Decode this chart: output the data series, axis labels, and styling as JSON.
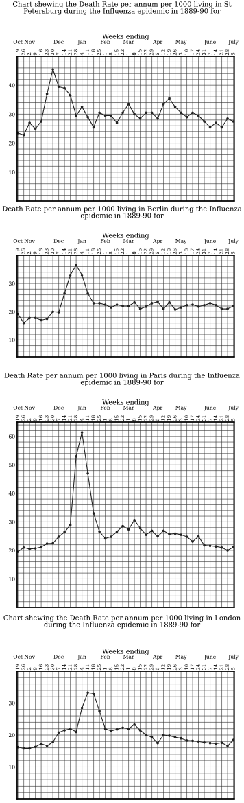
{
  "chart_data": [
    {
      "type": "line",
      "title": "Chart shewing the Death Rate per annum per 1000 living in St Petersburg during the Influenza epidemic in 1889-90 for",
      "x2label": "Weeks ending",
      "marker": "circle",
      "line_style": "solid",
      "grid": true,
      "x": [
        "1889-10-19",
        "1889-10-26",
        "1889-11-02",
        "1889-11-09",
        "1889-11-16",
        "1889-11-23",
        "1889-11-30",
        "1889-12-07",
        "1889-12-14",
        "1889-12-21",
        "1889-12-28",
        "1890-01-04",
        "1890-01-11",
        "1890-01-18",
        "1890-01-25",
        "1890-02-01",
        "1890-02-08",
        "1890-02-15",
        "1890-02-22",
        "1890-03-01",
        "1890-03-08",
        "1890-03-15",
        "1890-03-22",
        "1890-03-29",
        "1890-04-05",
        "1890-04-12",
        "1890-04-19",
        "1890-04-26",
        "1890-05-03",
        "1890-05-10",
        "1890-05-17",
        "1890-05-24",
        "1890-05-31",
        "1890-06-07",
        "1890-06-14",
        "1890-06-21",
        "1890-06-28",
        "1890-07-05"
      ],
      "series": [
        {
          "color": "#222222",
          "values": [
            23.5,
            22.8,
            27,
            25,
            27.5,
            37,
            45.5,
            39.5,
            39,
            36.5,
            29.5,
            32.5,
            29,
            25.5,
            30.5,
            29.5,
            29.5,
            27,
            30.5,
            33.5,
            30,
            28.5,
            30.5,
            30.5,
            28.5,
            33.5,
            35.5,
            32.5,
            30.5,
            29,
            30.5,
            29.5,
            27.5,
            25.5,
            27,
            25.5,
            28.5,
            27.5
          ]
        }
      ],
      "xlim": [
        "1889-10-18",
        "1890-07-06"
      ],
      "xticks": [
        {
          "value": "1889-10-19",
          "label": "19"
        },
        {
          "value": "1889-10-26",
          "label": "26"
        },
        {
          "value": "1889-11-02",
          "label": "2"
        },
        {
          "value": "1889-11-09",
          "label": "9"
        },
        {
          "value": "1889-11-16",
          "label": "16"
        },
        {
          "value": "1889-11-23",
          "label": "23"
        },
        {
          "value": "1889-11-30",
          "label": "30"
        },
        {
          "value": "1889-12-07",
          "label": "7"
        },
        {
          "value": "1889-12-14",
          "label": "14"
        },
        {
          "value": "1889-12-21",
          "label": "21"
        },
        {
          "value": "1889-12-28",
          "label": "28"
        },
        {
          "value": "1890-01-04",
          "label": "4"
        },
        {
          "value": "1890-01-11",
          "label": "11"
        },
        {
          "value": "1890-01-18",
          "label": "18"
        },
        {
          "value": "1890-01-25",
          "label": "25"
        },
        {
          "value": "1890-02-01",
          "label": "1"
        },
        {
          "value": "1890-02-08",
          "label": "8"
        },
        {
          "value": "1890-02-15",
          "label": "15"
        },
        {
          "value": "1890-02-22",
          "label": "22"
        },
        {
          "value": "1890-03-01",
          "label": "1"
        },
        {
          "value": "1890-03-08",
          "label": "8"
        },
        {
          "value": "1890-03-15",
          "label": "15"
        },
        {
          "value": "1890-03-22",
          "label": "22"
        },
        {
          "value": "1890-03-29",
          "label": "29"
        },
        {
          "value": "1890-04-05",
          "label": "5"
        },
        {
          "value": "1890-04-12",
          "label": "12"
        },
        {
          "value": "1890-04-19",
          "label": "19"
        },
        {
          "value": "1890-04-26",
          "label": "26"
        },
        {
          "value": "1890-05-03",
          "label": "3"
        },
        {
          "value": "1890-05-10",
          "label": "10"
        },
        {
          "value": "1890-05-17",
          "label": "17"
        },
        {
          "value": "1890-05-24",
          "label": "24"
        },
        {
          "value": "1890-05-31",
          "label": "31"
        },
        {
          "value": "1890-06-07",
          "label": "7"
        },
        {
          "value": "1890-06-14",
          "label": "14"
        },
        {
          "value": "1890-06-21",
          "label": "21"
        },
        {
          "value": "1890-06-28",
          "label": "28"
        },
        {
          "value": "1890-07-05",
          "label": "5"
        }
      ],
      "x2lim": [
        "1889-10-18",
        "1890-07-06"
      ],
      "x2ticks": [
        {
          "value": "1889-10-19",
          "label": "Oct"
        },
        {
          "value": "1889-11-02",
          "label": "Nov"
        },
        {
          "value": "1889-12-07",
          "label": "Dec"
        },
        {
          "value": "1890-01-04",
          "label": "Jan"
        },
        {
          "value": "1890-02-01",
          "label": "Feb"
        },
        {
          "value": "1890-03-01",
          "label": "Mar"
        },
        {
          "value": "1890-04-05",
          "label": "Apr"
        },
        {
          "value": "1890-05-03",
          "label": "May"
        },
        {
          "value": "1890-06-07",
          "label": "June"
        },
        {
          "value": "1890-07-05",
          "label": "July"
        }
      ],
      "ylim": [
        0,
        50
      ],
      "yticks": [
        {
          "value": 2,
          "label": null
        },
        {
          "value": 4,
          "label": null
        },
        {
          "value": 6,
          "label": null
        },
        {
          "value": 8,
          "label": null
        },
        10,
        {
          "value": 12,
          "label": null
        },
        {
          "value": 14,
          "label": null
        },
        {
          "value": 16,
          "label": null
        },
        {
          "value": 18,
          "label": null
        },
        20,
        {
          "value": 22,
          "label": null
        },
        {
          "value": 24,
          "label": null
        },
        {
          "value": 26,
          "label": null
        },
        {
          "value": 28,
          "label": null
        },
        30,
        {
          "value": 32,
          "label": null
        },
        {
          "value": 34,
          "label": null
        },
        {
          "value": 36,
          "label": null
        },
        {
          "value": 38,
          "label": null
        },
        40,
        {
          "value": 42,
          "label": null
        },
        {
          "value": 44,
          "label": null
        },
        {
          "value": 46,
          "label": null
        },
        {
          "value": 48,
          "label": null
        }
      ]
    },
    {
      "type": "line",
      "title": "Death Rate per annum per 1000 living in Berlin during the Influenza epidemic in 1889-90 for",
      "x2label": "Weeks ending",
      "marker": "circle",
      "line_style": "solid",
      "grid": true,
      "x": [
        "1889-10-19",
        "1889-10-26",
        "1889-11-02",
        "1889-11-09",
        "1889-11-16",
        "1889-11-23",
        "1889-11-30",
        "1889-12-07",
        "1889-12-14",
        "1889-12-21",
        "1889-12-28",
        "1890-01-04",
        "1890-01-11",
        "1890-01-18",
        "1890-01-25",
        "1890-02-01",
        "1890-02-08",
        "1890-02-15",
        "1890-02-22",
        "1890-03-01",
        "1890-03-08",
        "1890-03-15",
        "1890-03-22",
        "1890-03-29",
        "1890-04-05",
        "1890-04-12",
        "1890-04-19",
        "1890-04-26",
        "1890-05-03",
        "1890-05-10",
        "1890-05-17",
        "1890-05-24",
        "1890-05-31",
        "1890-06-07",
        "1890-06-14",
        "1890-06-21",
        "1890-06-28",
        "1890-07-05"
      ],
      "series": [
        {
          "color": "#222222",
          "values": [
            19.2,
            16,
            17.8,
            17.8,
            17,
            17.5,
            20,
            19.8,
            26.5,
            33,
            36.5,
            33,
            26.5,
            23,
            23,
            22.5,
            21.5,
            22.5,
            22,
            22,
            23.3,
            21,
            21.8,
            23,
            23.5,
            21,
            23.3,
            20.8,
            21.5,
            22.3,
            22.5,
            21.8,
            22.3,
            23,
            22.3,
            21,
            21,
            22
          ]
        }
      ],
      "xlim": [
        "1889-10-18",
        "1890-07-06"
      ],
      "xticks": [
        {
          "value": "1889-10-19",
          "label": "19"
        },
        {
          "value": "1889-10-26",
          "label": "26"
        },
        {
          "value": "1889-11-02",
          "label": "2"
        },
        {
          "value": "1889-11-09",
          "label": "9"
        },
        {
          "value": "1889-11-16",
          "label": "16"
        },
        {
          "value": "1889-11-23",
          "label": "23"
        },
        {
          "value": "1889-11-30",
          "label": "30"
        },
        {
          "value": "1889-12-07",
          "label": "7"
        },
        {
          "value": "1889-12-14",
          "label": "14"
        },
        {
          "value": "1889-12-21",
          "label": "21"
        },
        {
          "value": "1889-12-28",
          "label": "28"
        },
        {
          "value": "1890-01-04",
          "label": "4"
        },
        {
          "value": "1890-01-11",
          "label": "11"
        },
        {
          "value": "1890-01-18",
          "label": "18"
        },
        {
          "value": "1890-01-25",
          "label": "25"
        },
        {
          "value": "1890-02-01",
          "label": "1"
        },
        {
          "value": "1890-02-08",
          "label": "8"
        },
        {
          "value": "1890-02-15",
          "label": "15"
        },
        {
          "value": "1890-02-22",
          "label": "22"
        },
        {
          "value": "1890-03-01",
          "label": "1"
        },
        {
          "value": "1890-03-08",
          "label": "8"
        },
        {
          "value": "1890-03-15",
          "label": "15"
        },
        {
          "value": "1890-03-22",
          "label": "22"
        },
        {
          "value": "1890-03-29",
          "label": "29"
        },
        {
          "value": "1890-04-05",
          "label": "5"
        },
        {
          "value": "1890-04-12",
          "label": "12"
        },
        {
          "value": "1890-04-19",
          "label": "19"
        },
        {
          "value": "1890-04-26",
          "label": "26"
        },
        {
          "value": "1890-05-03",
          "label": "3"
        },
        {
          "value": "1890-05-10",
          "label": "10"
        },
        {
          "value": "1890-05-17",
          "label": "17"
        },
        {
          "value": "1890-05-24",
          "label": "24"
        },
        {
          "value": "1890-05-31",
          "label": "31"
        },
        {
          "value": "1890-06-07",
          "label": "7"
        },
        {
          "value": "1890-06-14",
          "label": "14"
        },
        {
          "value": "1890-06-21",
          "label": "21"
        },
        {
          "value": "1890-06-28",
          "label": "28"
        },
        {
          "value": "1890-07-05",
          "label": "5"
        }
      ],
      "x2lim": [
        "1889-10-18",
        "1890-07-06"
      ],
      "x2ticks": [
        {
          "value": "1889-10-19",
          "label": "Oct"
        },
        {
          "value": "1889-11-02",
          "label": "Nov"
        },
        {
          "value": "1889-12-07",
          "label": "Dec"
        },
        {
          "value": "1890-01-04",
          "label": "Jan"
        },
        {
          "value": "1890-02-01",
          "label": "Feb"
        },
        {
          "value": "1890-03-01",
          "label": "Mar"
        },
        {
          "value": "1890-04-05",
          "label": "Apr"
        },
        {
          "value": "1890-05-03",
          "label": "May"
        },
        {
          "value": "1890-06-07",
          "label": "June"
        },
        {
          "value": "1890-07-05",
          "label": "July"
        }
      ],
      "ylim": [
        4,
        40
      ],
      "yticks": [
        {
          "value": 6,
          "label": null
        },
        {
          "value": 8,
          "label": null
        },
        10,
        {
          "value": 12,
          "label": null
        },
        {
          "value": 14,
          "label": null
        },
        {
          "value": 16,
          "label": null
        },
        {
          "value": 18,
          "label": null
        },
        20,
        {
          "value": 22,
          "label": null
        },
        {
          "value": 24,
          "label": null
        },
        {
          "value": 26,
          "label": null
        },
        {
          "value": 28,
          "label": null
        },
        30,
        {
          "value": 32,
          "label": null
        },
        {
          "value": 34,
          "label": null
        },
        {
          "value": 36,
          "label": null
        },
        {
          "value": 38,
          "label": null
        }
      ]
    },
    {
      "type": "line",
      "title": "Death Rate per annum per 1000 living in Paris during the Influenza epidemic in 1889-90 for",
      "x2label": "Weeks ending",
      "marker": "circle",
      "line_style": "solid",
      "grid": true,
      "x": [
        "1889-10-19",
        "1889-10-26",
        "1889-11-02",
        "1889-11-09",
        "1889-11-16",
        "1889-11-23",
        "1889-11-30",
        "1889-12-07",
        "1889-12-14",
        "1889-12-21",
        "1889-12-28",
        "1890-01-04",
        "1890-01-11",
        "1890-01-18",
        "1890-01-25",
        "1890-02-01",
        "1890-02-08",
        "1890-02-15",
        "1890-02-22",
        "1890-03-01",
        "1890-03-08",
        "1890-03-15",
        "1890-03-22",
        "1890-03-29",
        "1890-04-05",
        "1890-04-12",
        "1890-04-19",
        "1890-04-26",
        "1890-05-03",
        "1890-05-10",
        "1890-05-17",
        "1890-05-24",
        "1890-05-31",
        "1890-06-07",
        "1890-06-14",
        "1890-06-21",
        "1890-06-28",
        "1890-07-05"
      ],
      "series": [
        {
          "color": "#222222",
          "values": [
            19.5,
            21,
            20.5,
            20.7,
            21.2,
            22.4,
            22.5,
            24.8,
            26.4,
            28.9,
            53,
            61.4,
            47,
            33,
            26.6,
            24.2,
            24.8,
            26.6,
            28.5,
            27.4,
            30.6,
            27.8,
            25.5,
            26.9,
            24.9,
            26.9,
            25.7,
            25.9,
            25.5,
            24.8,
            23.1,
            24.9,
            21.8,
            21.6,
            21.4,
            21,
            20,
            21.2
          ]
        }
      ],
      "xlim": [
        "1889-10-18",
        "1890-07-06"
      ],
      "xticks": [
        {
          "value": "1889-10-19",
          "label": "19"
        },
        {
          "value": "1889-10-26",
          "label": "26"
        },
        {
          "value": "1889-11-02",
          "label": "2"
        },
        {
          "value": "1889-11-09",
          "label": "9"
        },
        {
          "value": "1889-11-16",
          "label": "16"
        },
        {
          "value": "1889-11-23",
          "label": "23"
        },
        {
          "value": "1889-11-30",
          "label": "30"
        },
        {
          "value": "1889-12-07",
          "label": "7"
        },
        {
          "value": "1889-12-14",
          "label": "14"
        },
        {
          "value": "1889-12-21",
          "label": "21"
        },
        {
          "value": "1889-12-28",
          "label": "28"
        },
        {
          "value": "1890-01-04",
          "label": "4"
        },
        {
          "value": "1890-01-11",
          "label": "11"
        },
        {
          "value": "1890-01-18",
          "label": "18"
        },
        {
          "value": "1890-01-25",
          "label": "25"
        },
        {
          "value": "1890-02-01",
          "label": "1"
        },
        {
          "value": "1890-02-08",
          "label": "8"
        },
        {
          "value": "1890-02-15",
          "label": "15"
        },
        {
          "value": "1890-02-22",
          "label": "22"
        },
        {
          "value": "1890-03-01",
          "label": "1"
        },
        {
          "value": "1890-03-08",
          "label": "8"
        },
        {
          "value": "1890-03-15",
          "label": "15"
        },
        {
          "value": "1890-03-22",
          "label": "22"
        },
        {
          "value": "1890-03-29",
          "label": "29"
        },
        {
          "value": "1890-04-05",
          "label": "5"
        },
        {
          "value": "1890-04-12",
          "label": "12"
        },
        {
          "value": "1890-04-19",
          "label": "19"
        },
        {
          "value": "1890-04-26",
          "label": "26"
        },
        {
          "value": "1890-05-03",
          "label": "3"
        },
        {
          "value": "1890-05-10",
          "label": "10"
        },
        {
          "value": "1890-05-17",
          "label": "17"
        },
        {
          "value": "1890-05-24",
          "label": "24"
        },
        {
          "value": "1890-05-31",
          "label": "31"
        },
        {
          "value": "1890-06-07",
          "label": "7"
        },
        {
          "value": "1890-06-14",
          "label": "14"
        },
        {
          "value": "1890-06-21",
          "label": "21"
        },
        {
          "value": "1890-06-28",
          "label": "28"
        },
        {
          "value": "1890-07-05",
          "label": "5"
        }
      ],
      "x2lim": [
        "1889-10-18",
        "1890-07-06"
      ],
      "x2ticks": [
        {
          "value": "1889-10-19",
          "label": "Oct"
        },
        {
          "value": "1889-11-02",
          "label": "Nov"
        },
        {
          "value": "1889-12-07",
          "label": "Dec"
        },
        {
          "value": "1890-01-04",
          "label": "Jan"
        },
        {
          "value": "1890-02-01",
          "label": "Feb"
        },
        {
          "value": "1890-03-01",
          "label": "Mar"
        },
        {
          "value": "1890-04-05",
          "label": "Apr"
        },
        {
          "value": "1890-05-03",
          "label": "May"
        },
        {
          "value": "1890-06-07",
          "label": "June"
        },
        {
          "value": "1890-07-05",
          "label": "July"
        }
      ],
      "ylim": [
        0,
        65
      ],
      "yticks": [
        {
          "value": 2,
          "label": null
        },
        {
          "value": 4,
          "label": null
        },
        {
          "value": 6,
          "label": null
        },
        {
          "value": 8,
          "label": null
        },
        10,
        {
          "value": 12,
          "label": null
        },
        {
          "value": 14,
          "label": null
        },
        {
          "value": 16,
          "label": null
        },
        {
          "value": 18,
          "label": null
        },
        20,
        {
          "value": 22,
          "label": null
        },
        {
          "value": 24,
          "label": null
        },
        {
          "value": 26,
          "label": null
        },
        {
          "value": 28,
          "label": null
        },
        30,
        {
          "value": 32,
          "label": null
        },
        {
          "value": 34,
          "label": null
        },
        {
          "value": 36,
          "label": null
        },
        {
          "value": 38,
          "label": null
        },
        40,
        {
          "value": 42,
          "label": null
        },
        {
          "value": 44,
          "label": null
        },
        {
          "value": 46,
          "label": null
        },
        {
          "value": 48,
          "label": null
        },
        50,
        {
          "value": 52,
          "label": null
        },
        {
          "value": 54,
          "label": null
        },
        {
          "value": 56,
          "label": null
        },
        {
          "value": 58,
          "label": null
        },
        60,
        {
          "value": 62,
          "label": null
        },
        {
          "value": 64,
          "label": null
        }
      ]
    },
    {
      "type": "line",
      "title": "Chart shewing the Death Rate per annum per 1000 living in London during the Influenza epidemic in 1889-90 for",
      "x2label": "Weeks ending",
      "marker": "circle",
      "line_style": "solid",
      "grid": true,
      "x": [
        "1889-10-19",
        "1889-10-26",
        "1889-11-02",
        "1889-11-09",
        "1889-11-16",
        "1889-11-23",
        "1889-11-30",
        "1889-12-07",
        "1889-12-14",
        "1889-12-21",
        "1889-12-28",
        "1890-01-04",
        "1890-01-11",
        "1890-01-18",
        "1890-01-25",
        "1890-02-01",
        "1890-02-08",
        "1890-02-15",
        "1890-02-22",
        "1890-03-01",
        "1890-03-08",
        "1890-03-15",
        "1890-03-22",
        "1890-03-29",
        "1890-04-05",
        "1890-04-12",
        "1890-04-19",
        "1890-04-26",
        "1890-05-03",
        "1890-05-10",
        "1890-05-17",
        "1890-05-24",
        "1890-05-31",
        "1890-06-07",
        "1890-06-14",
        "1890-06-21",
        "1890-06-28",
        "1890-07-05"
      ],
      "series": [
        {
          "color": "#222222",
          "values": [
            16.2,
            15.8,
            15.8,
            16.3,
            17.3,
            16.6,
            17.8,
            20.8,
            21.5,
            22,
            21,
            28.5,
            33.3,
            33,
            27.5,
            22,
            21.3,
            21.8,
            22.3,
            22,
            23.3,
            21.5,
            20,
            19.3,
            17.5,
            20,
            19.8,
            19.3,
            19,
            18.3,
            18.2,
            18,
            17.7,
            17.5,
            17.3,
            17.6,
            16.6,
            18.5
          ]
        }
      ],
      "xlim": [
        "1889-10-18",
        "1890-07-06"
      ],
      "xticks": [
        {
          "value": "1889-10-19",
          "label": "19"
        },
        {
          "value": "1889-10-26",
          "label": "26"
        },
        {
          "value": "1889-11-02",
          "label": "2"
        },
        {
          "value": "1889-11-09",
          "label": "9"
        },
        {
          "value": "1889-11-16",
          "label": "16"
        },
        {
          "value": "1889-11-23",
          "label": "23"
        },
        {
          "value": "1889-11-30",
          "label": "30"
        },
        {
          "value": "1889-12-07",
          "label": "7"
        },
        {
          "value": "1889-12-14",
          "label": "14"
        },
        {
          "value": "1889-12-21",
          "label": "21"
        },
        {
          "value": "1889-12-28",
          "label": "28"
        },
        {
          "value": "1890-01-04",
          "label": "4"
        },
        {
          "value": "1890-01-11",
          "label": "11"
        },
        {
          "value": "1890-01-18",
          "label": "18"
        },
        {
          "value": "1890-01-25",
          "label": "25"
        },
        {
          "value": "1890-02-01",
          "label": "1"
        },
        {
          "value": "1890-02-08",
          "label": "8"
        },
        {
          "value": "1890-02-15",
          "label": "15"
        },
        {
          "value": "1890-02-22",
          "label": "22"
        },
        {
          "value": "1890-03-01",
          "label": "1"
        },
        {
          "value": "1890-03-08",
          "label": "8"
        },
        {
          "value": "1890-03-15",
          "label": "15"
        },
        {
          "value": "1890-03-22",
          "label": "22"
        },
        {
          "value": "1890-03-29",
          "label": "29"
        },
        {
          "value": "1890-04-05",
          "label": "5"
        },
        {
          "value": "1890-04-12",
          "label": "12"
        },
        {
          "value": "1890-04-19",
          "label": "19"
        },
        {
          "value": "1890-04-26",
          "label": "26"
        },
        {
          "value": "1890-05-03",
          "label": "3"
        },
        {
          "value": "1890-05-10",
          "label": "10"
        },
        {
          "value": "1890-05-17",
          "label": "17"
        },
        {
          "value": "1890-05-24",
          "label": "24"
        },
        {
          "value": "1890-05-31",
          "label": "31"
        },
        {
          "value": "1890-06-07",
          "label": "7"
        },
        {
          "value": "1890-06-14",
          "label": "14"
        },
        {
          "value": "1890-06-21",
          "label": "21"
        },
        {
          "value": "1890-06-28",
          "label": "28"
        },
        {
          "value": "1890-07-05",
          "label": "5"
        }
      ],
      "x2lim": [
        "1889-10-18",
        "1890-07-06"
      ],
      "x2ticks": [
        {
          "value": "1889-10-19",
          "label": "Oct"
        },
        {
          "value": "1889-11-02",
          "label": "Nov"
        },
        {
          "value": "1889-12-07",
          "label": "Dec"
        },
        {
          "value": "1890-01-04",
          "label": "Jan"
        },
        {
          "value": "1890-02-01",
          "label": "Feb"
        },
        {
          "value": "1890-03-01",
          "label": "Mar"
        },
        {
          "value": "1890-04-05",
          "label": "Apr"
        },
        {
          "value": "1890-05-03",
          "label": "May"
        },
        {
          "value": "1890-06-07",
          "label": "June"
        },
        {
          "value": "1890-07-05",
          "label": "July"
        }
      ],
      "ylim": [
        0,
        40
      ],
      "yticks": [
        {
          "value": 2,
          "label": null
        },
        {
          "value": 4,
          "label": null
        },
        {
          "value": 6,
          "label": null
        },
        {
          "value": 8,
          "label": null
        },
        10,
        {
          "value": 12,
          "label": null
        },
        {
          "value": 14,
          "label": null
        },
        {
          "value": 16,
          "label": null
        },
        {
          "value": 18,
          "label": null
        },
        20,
        {
          "value": 22,
          "label": null
        },
        {
          "value": 24,
          "label": null
        },
        {
          "value": 26,
          "label": null
        },
        {
          "value": 28,
          "label": null
        },
        30,
        {
          "value": 32,
          "label": null
        },
        {
          "value": 34,
          "label": null
        },
        {
          "value": 36,
          "label": null
        },
        {
          "value": 38,
          "label": null
        }
      ]
    }
  ]
}
